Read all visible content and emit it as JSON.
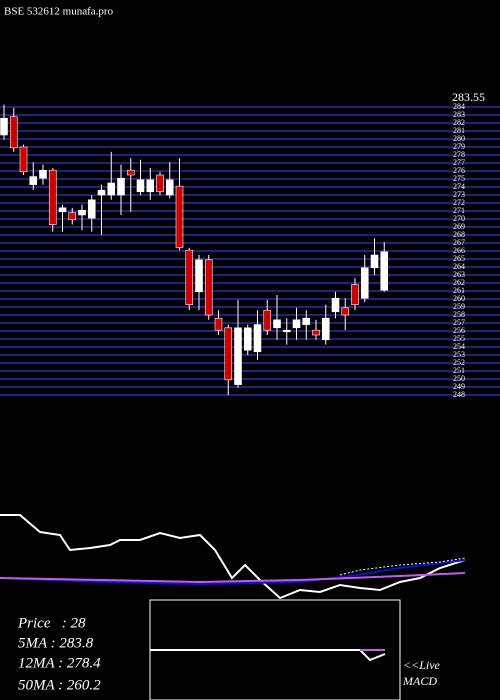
{
  "chart_data": [
    {
      "type": "candlestick",
      "title": "BSE 532612 munafa.pro",
      "price_label": "283.55",
      "up_color": "#ffffff",
      "down_color": "#cc0000",
      "grid_color": "#2a2aa8",
      "ylim": [
        248,
        284
      ],
      "yticks": [
        248,
        249,
        250,
        251,
        252,
        253,
        254,
        255,
        256,
        257,
        258,
        259,
        260,
        261,
        262,
        263,
        264,
        265,
        266,
        267,
        268,
        269,
        270,
        271,
        272,
        273,
        274,
        275,
        276,
        277,
        278,
        279,
        280,
        281,
        282,
        283,
        284
      ],
      "open": [
        280.5,
        282.8,
        279,
        274.3,
        275.1,
        276.1,
        270.9,
        270.8,
        270.5,
        270.1,
        273,
        273,
        273,
        276.1,
        273.4,
        273.4,
        275.5,
        273,
        274.1,
        266.1,
        260.9,
        264.9,
        257.6,
        256.4,
        249.3,
        253.6,
        253.4,
        258.6,
        256.4,
        255.9,
        256.4,
        256.8,
        256.1,
        254.9,
        258.4,
        258.9,
        261.8,
        260.1,
        263.9,
        261.1
      ],
      "high": [
        284.3,
        283.9,
        279.3,
        277.1,
        276.8,
        276.4,
        271.8,
        271.4,
        271.8,
        273,
        274.3,
        278.4,
        276.8,
        277.6,
        277.4,
        276.4,
        275.9,
        277.1,
        277.6,
        266.4,
        265.5,
        265.5,
        258.6,
        256.8,
        259.9,
        256.8,
        258.6,
        259.9,
        260.5,
        257.6,
        258.9,
        258.6,
        257.4,
        259.3,
        260.9,
        260.1,
        262.6,
        265.5,
        267.6,
        267.1
      ],
      "low": [
        279.9,
        278.4,
        275.5,
        273.6,
        274.3,
        268.4,
        268.4,
        269.3,
        268.6,
        268.4,
        268,
        272.4,
        270.5,
        270.9,
        273,
        272.4,
        273,
        272.6,
        266.1,
        258.6,
        258.6,
        257.4,
        255.5,
        248,
        248.9,
        253,
        252.4,
        255.5,
        254.9,
        254.3,
        254.9,
        254.9,
        254.9,
        254.3,
        257.6,
        256.1,
        258.6,
        259.6,
        263,
        260.9
      ],
      "close": [
        282.6,
        278.9,
        275.9,
        275.3,
        276.1,
        269.3,
        271.4,
        269.9,
        271.1,
        272.4,
        273.6,
        274.5,
        275.1,
        275.5,
        274.9,
        274.9,
        273.4,
        274.9,
        266.4,
        259.3,
        264.9,
        258,
        256.1,
        249.9,
        256.4,
        256.4,
        256.8,
        256.1,
        257.4,
        256.1,
        257.4,
        257.6,
        255.5,
        257.6,
        260.1,
        258,
        259.3,
        263.9,
        265.5,
        265.9
      ]
    },
    {
      "type": "line",
      "xlim": [
        0,
        465
      ],
      "ylim": [
        0,
        100
      ],
      "series": [
        {
          "color": "#ffffff",
          "x": [
            0,
            20,
            40,
            60,
            70,
            90,
            110,
            120,
            140,
            160,
            180,
            200,
            215,
            232,
            245,
            260,
            280,
            300,
            320,
            340,
            360,
            380,
            400,
            420,
            440,
            465
          ],
          "values": [
            85,
            85,
            68,
            65,
            50,
            52,
            55,
            60,
            60,
            67,
            62,
            65,
            50,
            22,
            35,
            20,
            2,
            10,
            8,
            15,
            12,
            10,
            18,
            22,
            32,
            40
          ]
        },
        {
          "color": "#1010c8",
          "x": [
            0,
            100,
            200,
            300,
            350,
            400,
            465
          ],
          "values": [
            22,
            18,
            16,
            18,
            24,
            32,
            40
          ]
        },
        {
          "color": "#c060e0",
          "x": [
            0,
            100,
            200,
            300,
            400,
            465
          ],
          "values": [
            22,
            20,
            18,
            20,
            24,
            27
          ]
        },
        {
          "color": "#ffffff",
          "dash": true,
          "x": [
            340,
            360,
            400,
            440,
            465
          ],
          "values": [
            25,
            30,
            35,
            38,
            42
          ]
        }
      ]
    },
    {
      "type": "line",
      "name": "MACD",
      "live": "<<Live",
      "xlim": [
        0,
        250
      ],
      "ylim": [
        0,
        100
      ],
      "series": [
        {
          "color": "#ffffff",
          "x": [
            0,
            210,
            220,
            235
          ],
          "values": [
            50,
            50,
            40,
            46
          ]
        },
        {
          "color": "#c060e0",
          "x": [
            210,
            235
          ],
          "values": [
            50,
            50
          ]
        }
      ]
    }
  ],
  "info": [
    "Price   : 28",
    "5MA : 283.8",
    "12MA : 278.4",
    "50MA : 260.2"
  ]
}
